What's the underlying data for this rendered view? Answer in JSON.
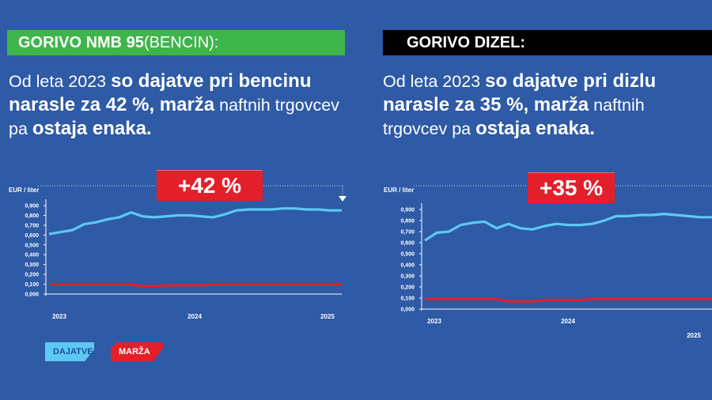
{
  "left": {
    "header": {
      "bold": "GORIVO NMB 95",
      "light": " (BENCIN):"
    },
    "lead": {
      "t1": "Od leta 2023 ",
      "b1": "so dajatve pri bencinu narasle za 42 %, marža",
      "t2": " naftnih trgovcev pa ",
      "b2": "ostaja enaka."
    },
    "badge": "+42 %"
  },
  "right": {
    "header": {
      "bold": "GORIVO DIZEL:"
    },
    "lead": {
      "t1": "Od leta 2023 ",
      "b1": "so dajatve pri dizlu narasle za 35 %, marža",
      "t2": " naftnih trgovcev pa ",
      "b2": "ostaja enaka."
    },
    "badge": "+35 %"
  },
  "legend": {
    "dajatve": "DAJATVE",
    "marza": "MARŽA"
  },
  "colors": {
    "background": "#2e5aa6",
    "dajatve": "#5ec8f5",
    "marza": "#e3202a",
    "green": "#3eb54a",
    "black": "#000000"
  },
  "chart_data": [
    {
      "type": "line",
      "title": "GORIVO NMB 95 (BENCIN)",
      "ylabel": "EUR / liter",
      "ylim": [
        0,
        0.9
      ],
      "yticks": [
        "0,000",
        "0,100",
        "0,200",
        "0,300",
        "0,400",
        "0,500",
        "0,600",
        "0,700",
        "0,800",
        "0,900"
      ],
      "xticks": [
        "2023",
        "2024",
        "2025"
      ],
      "x": [
        "2023-01",
        "2023-02",
        "2023-03",
        "2023-04",
        "2023-05",
        "2023-06",
        "2023-07",
        "2023-08",
        "2023-09",
        "2023-10",
        "2023-11",
        "2023-12",
        "2024-01",
        "2024-02",
        "2024-03",
        "2024-04",
        "2024-05",
        "2024-06",
        "2024-07",
        "2024-08",
        "2024-09",
        "2024-10",
        "2024-11",
        "2024-12",
        "2025-01",
        "2025-02"
      ],
      "series": [
        {
          "name": "DAJATVE",
          "values": [
            0.61,
            0.63,
            0.65,
            0.71,
            0.73,
            0.76,
            0.78,
            0.83,
            0.79,
            0.78,
            0.79,
            0.8,
            0.8,
            0.79,
            0.78,
            0.81,
            0.85,
            0.86,
            0.86,
            0.86,
            0.87,
            0.87,
            0.86,
            0.86,
            0.85,
            0.85
          ]
        },
        {
          "name": "MARŽA",
          "values": [
            0.1,
            0.1,
            0.1,
            0.1,
            0.1,
            0.1,
            0.1,
            0.1,
            0.08,
            0.08,
            0.09,
            0.09,
            0.09,
            0.09,
            0.1,
            0.1,
            0.1,
            0.1,
            0.1,
            0.1,
            0.1,
            0.1,
            0.1,
            0.1,
            0.1,
            0.1
          ]
        }
      ]
    },
    {
      "type": "line",
      "title": "GORIVO DIZEL",
      "ylabel": "EUR / liter",
      "ylim": [
        0,
        0.9
      ],
      "yticks": [
        "0,000",
        "0,100",
        "0,200",
        "0,300",
        "0,400",
        "0,500",
        "0,600",
        "0,700",
        "0,800",
        "0,900"
      ],
      "xticks": [
        "2023",
        "2024",
        "2025"
      ],
      "x": [
        "2023-01",
        "2023-02",
        "2023-03",
        "2023-04",
        "2023-05",
        "2023-06",
        "2023-07",
        "2023-08",
        "2023-09",
        "2023-10",
        "2023-11",
        "2023-12",
        "2024-01",
        "2024-02",
        "2024-03",
        "2024-04",
        "2024-05",
        "2024-06",
        "2024-07",
        "2024-08",
        "2024-09",
        "2024-10",
        "2024-11",
        "2024-12",
        "2025-01"
      ],
      "series": [
        {
          "name": "DAJATVE",
          "values": [
            0.62,
            0.69,
            0.7,
            0.76,
            0.78,
            0.79,
            0.73,
            0.77,
            0.73,
            0.72,
            0.75,
            0.77,
            0.76,
            0.76,
            0.77,
            0.8,
            0.84,
            0.84,
            0.85,
            0.85,
            0.86,
            0.85,
            0.84,
            0.83,
            0.83
          ]
        },
        {
          "name": "MARŽA",
          "values": [
            0.09,
            0.09,
            0.09,
            0.09,
            0.09,
            0.09,
            0.09,
            0.07,
            0.07,
            0.07,
            0.08,
            0.08,
            0.08,
            0.08,
            0.09,
            0.09,
            0.09,
            0.09,
            0.09,
            0.09,
            0.09,
            0.09,
            0.09,
            0.09,
            0.09
          ]
        }
      ]
    }
  ]
}
